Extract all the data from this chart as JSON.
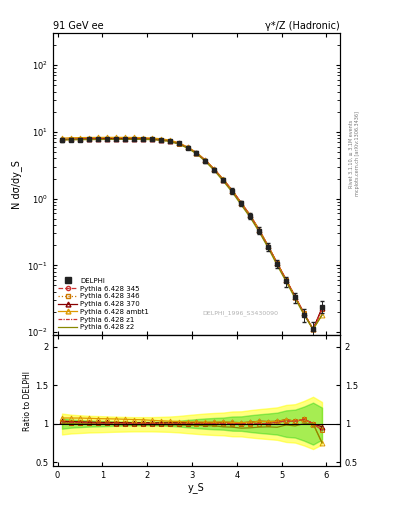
{
  "title_left": "91 GeV ee",
  "title_right": "γ*/Z (Hadronic)",
  "ylabel_main": "N dσ/dy_S",
  "ylabel_ratio": "Ratio to DELPHI",
  "xlabel": "y_S",
  "watermark": "DELPHI_1996_S3430090",
  "right_label1": "Rivet 3.1.10, ≥ 3.1M events",
  "right_label2": "mcplots.cern.ch [arXiv:1306.3436]",
  "ylim_main": [
    0.009,
    300
  ],
  "ylim_ratio": [
    0.45,
    2.15
  ],
  "yticks_ratio": [
    0.5,
    1.0,
    1.5,
    2.0
  ],
  "yticklabels_ratio": [
    "0.5",
    "1",
    "1.5",
    "2"
  ],
  "xlim": [
    -0.1,
    6.3
  ],
  "xticks": [
    0,
    1,
    2,
    3,
    4,
    5,
    6
  ],
  "delphi_x": [
    0.1,
    0.3,
    0.5,
    0.7,
    0.9,
    1.1,
    1.3,
    1.5,
    1.7,
    1.9,
    2.1,
    2.3,
    2.5,
    2.7,
    2.9,
    3.1,
    3.3,
    3.5,
    3.7,
    3.9,
    4.1,
    4.3,
    4.5,
    4.7,
    4.9,
    5.1,
    5.3,
    5.5,
    5.7,
    5.9
  ],
  "delphi_y": [
    7.5,
    7.6,
    7.65,
    7.7,
    7.75,
    7.78,
    7.8,
    7.82,
    7.83,
    7.8,
    7.75,
    7.6,
    7.3,
    6.7,
    5.8,
    4.8,
    3.7,
    2.7,
    1.9,
    1.3,
    0.85,
    0.55,
    0.33,
    0.19,
    0.105,
    0.058,
    0.033,
    0.018,
    0.011,
    0.024
  ],
  "delphi_yerr": [
    0.5,
    0.4,
    0.35,
    0.3,
    0.28,
    0.25,
    0.22,
    0.2,
    0.18,
    0.18,
    0.18,
    0.2,
    0.22,
    0.25,
    0.28,
    0.28,
    0.25,
    0.2,
    0.15,
    0.12,
    0.08,
    0.06,
    0.04,
    0.025,
    0.015,
    0.01,
    0.006,
    0.004,
    0.003,
    0.005
  ],
  "mc_x": [
    0.1,
    0.3,
    0.5,
    0.7,
    0.9,
    1.1,
    1.3,
    1.5,
    1.7,
    1.9,
    2.1,
    2.3,
    2.5,
    2.7,
    2.9,
    3.1,
    3.3,
    3.5,
    3.7,
    3.9,
    4.1,
    4.3,
    4.5,
    4.7,
    4.9,
    5.1,
    5.3,
    5.5,
    5.7,
    5.9
  ],
  "p345_y": [
    7.65,
    7.7,
    7.73,
    7.75,
    7.78,
    7.8,
    7.81,
    7.82,
    7.82,
    7.8,
    7.74,
    7.58,
    7.28,
    6.68,
    5.78,
    4.8,
    3.7,
    2.7,
    1.9,
    1.3,
    0.85,
    0.55,
    0.33,
    0.19,
    0.107,
    0.06,
    0.034,
    0.019,
    0.011,
    0.022
  ],
  "p346_y": [
    7.65,
    7.7,
    7.73,
    7.75,
    7.78,
    7.8,
    7.81,
    7.82,
    7.82,
    7.8,
    7.74,
    7.58,
    7.28,
    6.68,
    5.78,
    4.8,
    3.7,
    2.7,
    1.9,
    1.3,
    0.85,
    0.55,
    0.33,
    0.19,
    0.107,
    0.06,
    0.034,
    0.019,
    0.011,
    0.022
  ],
  "p370_y": [
    7.75,
    7.8,
    7.83,
    7.85,
    7.87,
    7.9,
    7.91,
    7.91,
    7.91,
    7.89,
    7.83,
    7.67,
    7.37,
    6.77,
    5.87,
    4.87,
    3.75,
    2.74,
    1.93,
    1.32,
    0.86,
    0.56,
    0.34,
    0.195,
    0.108,
    0.061,
    0.034,
    0.019,
    0.011,
    0.023
  ],
  "pambt1_y": [
    8.05,
    8.15,
    8.2,
    8.23,
    8.25,
    8.27,
    8.27,
    8.26,
    8.24,
    8.19,
    8.08,
    7.88,
    7.53,
    6.88,
    5.93,
    4.9,
    3.77,
    2.75,
    1.94,
    1.32,
    0.86,
    0.56,
    0.34,
    0.195,
    0.108,
    0.061,
    0.034,
    0.019,
    0.011,
    0.018
  ],
  "pz1_y": [
    7.65,
    7.7,
    7.73,
    7.75,
    7.78,
    7.8,
    7.81,
    7.82,
    7.82,
    7.8,
    7.74,
    7.58,
    7.28,
    6.68,
    5.78,
    4.8,
    3.7,
    2.7,
    1.9,
    1.3,
    0.85,
    0.55,
    0.33,
    0.19,
    0.107,
    0.06,
    0.034,
    0.019,
    0.011,
    0.022
  ],
  "pz2_y": [
    7.55,
    7.6,
    7.63,
    7.65,
    7.67,
    7.7,
    7.71,
    7.72,
    7.72,
    7.7,
    7.64,
    7.48,
    7.18,
    6.58,
    5.68,
    4.7,
    3.6,
    2.62,
    1.82,
    1.24,
    0.8,
    0.52,
    0.315,
    0.182,
    0.1,
    0.057,
    0.032,
    0.018,
    0.011,
    0.018
  ],
  "colors": {
    "delphi": "#222222",
    "p345": "#cc3333",
    "p346": "#cc7700",
    "p370": "#880000",
    "pambt1": "#dd9900",
    "pz1": "#cc3333",
    "pz2": "#888800"
  },
  "band_color_green": "#00cc00",
  "band_color_yellow": "#ffff00",
  "band_alpha": 0.35
}
